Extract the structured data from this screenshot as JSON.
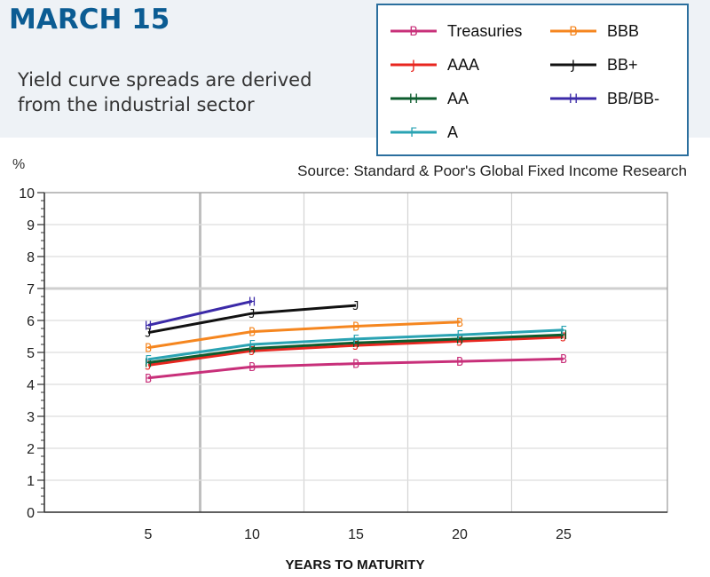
{
  "header": {
    "title": "MARCH 15",
    "subtitle": "Yield curve spreads are derived from the industrial sector"
  },
  "source_note": "Source: Standard & Poor's Global Fixed Income Research",
  "colors": {
    "accent": "#0b5c93",
    "legend_border": "#2b6f9e"
  },
  "chart_data": {
    "type": "line",
    "title": "",
    "xlabel": "YEARS TO MATURITY",
    "ylabel": "%",
    "x_ticks": [
      5,
      10,
      15,
      20,
      25
    ],
    "y_ticks": [
      0,
      1,
      2,
      3,
      4,
      5,
      6,
      7,
      8,
      9,
      10
    ],
    "xlim": [
      0,
      30
    ],
    "ylim": [
      0,
      10
    ],
    "grid": true,
    "legend_position": "top-right",
    "series": [
      {
        "name": "Treasuries",
        "color": "#c8307a",
        "marker": "B",
        "x": [
          5,
          10,
          15,
          20,
          25
        ],
        "values": [
          4.2,
          4.55,
          4.65,
          4.72,
          4.8
        ]
      },
      {
        "name": "AAA",
        "color": "#e8261f",
        "marker": "J",
        "x": [
          5,
          10,
          15,
          20,
          25
        ],
        "values": [
          4.6,
          5.05,
          5.22,
          5.35,
          5.48
        ]
      },
      {
        "name": "AA",
        "color": "#0d5c2e",
        "marker": "H",
        "x": [
          5,
          10,
          15,
          20,
          25
        ],
        "values": [
          4.68,
          5.12,
          5.3,
          5.42,
          5.55
        ]
      },
      {
        "name": "A",
        "color": "#2aa3b3",
        "marker": "F",
        "x": [
          5,
          10,
          15,
          20,
          25
        ],
        "values": [
          4.78,
          5.25,
          5.42,
          5.55,
          5.7
        ]
      },
      {
        "name": "BBB",
        "color": "#f5861f",
        "marker": "B",
        "x": [
          5,
          10,
          15,
          20
        ],
        "values": [
          5.15,
          5.65,
          5.82,
          5.95
        ]
      },
      {
        "name": "BB+",
        "color": "#111111",
        "marker": "J",
        "x": [
          5,
          10,
          15
        ],
        "values": [
          5.62,
          6.22,
          6.47
        ]
      },
      {
        "name": "BB/BB-",
        "color": "#3b2aa8",
        "marker": "H",
        "x": [
          5,
          10
        ],
        "values": [
          5.85,
          6.6
        ]
      }
    ]
  }
}
